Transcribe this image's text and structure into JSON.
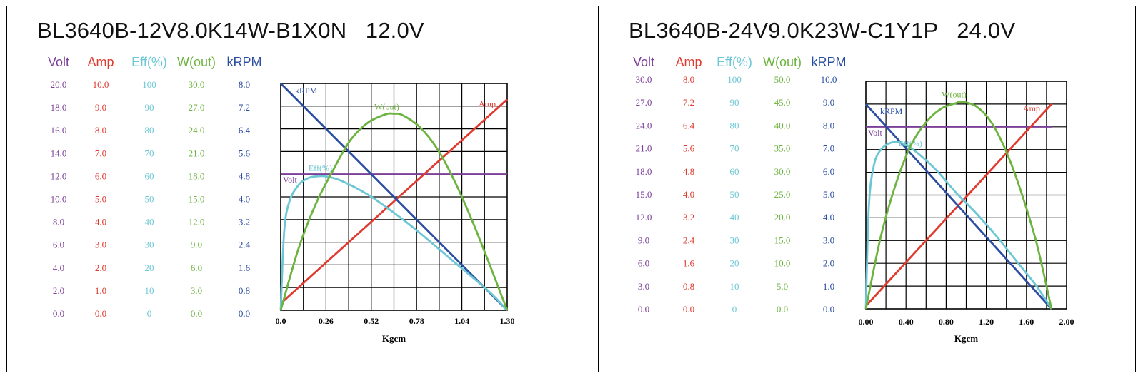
{
  "colors": {
    "volt": "#7b3f98",
    "amp": "#e03a2f",
    "eff": "#6cc7d4",
    "wout": "#6db33f",
    "krpm": "#2b4ea2",
    "grid": "#000000"
  },
  "chart_data": [
    {
      "type": "line",
      "title": "BL3640B-12V8.0K14W-B1X0N   12.0V",
      "xlabel": "Kgcm",
      "x_ticks": [
        "0.0",
        "0.26",
        "0.52",
        "0.78",
        "1.04",
        "1.30"
      ],
      "xlim": [
        0,
        1.3
      ],
      "axes": [
        {
          "key": "volt",
          "header": "Volt",
          "ticks": [
            "0.0",
            "2.0",
            "4.0",
            "6.0",
            "8.0",
            "10.0",
            "12.0",
            "14.0",
            "16.0",
            "18.0",
            "20.0"
          ],
          "range": [
            0,
            20
          ]
        },
        {
          "key": "amp",
          "header": "Amp",
          "ticks": [
            "0.0",
            "1.0",
            "2.0",
            "3.0",
            "4.0",
            "5.0",
            "6.0",
            "7.0",
            "8.0",
            "9.0",
            "10.0"
          ],
          "range": [
            0,
            10
          ]
        },
        {
          "key": "eff",
          "header": "Eff(%)",
          "ticks": [
            "0",
            "10",
            "20",
            "30",
            "40",
            "50",
            "60",
            "70",
            "80",
            "90",
            "100"
          ],
          "range": [
            0,
            100
          ]
        },
        {
          "key": "wout",
          "header": "W(out)",
          "ticks": [
            "0.0",
            "3.0",
            "6.0",
            "9.0",
            "12.0",
            "15.0",
            "18.0",
            "21.0",
            "24.0",
            "27.0",
            "30.0"
          ],
          "range": [
            0,
            30
          ]
        },
        {
          "key": "krpm",
          "header": "kRPM",
          "ticks": [
            "0.0",
            "0.8",
            "1.6",
            "2.4",
            "3.2",
            "4.0",
            "4.8",
            "5.6",
            "6.4",
            "7.2",
            "8.0"
          ],
          "range": [
            0,
            8
          ]
        }
      ],
      "series": [
        {
          "name": "Volt",
          "key": "volt",
          "label": "Volt",
          "x": [
            0,
            1.3
          ],
          "y": [
            12.0,
            12.0
          ]
        },
        {
          "name": "Amp",
          "key": "amp",
          "label": "Amp",
          "x": [
            0,
            1.3
          ],
          "y": [
            0.3,
            9.3
          ]
        },
        {
          "name": "kRPM",
          "key": "krpm",
          "label": "kRPM",
          "x": [
            0,
            1.3
          ],
          "y": [
            8.0,
            0
          ]
        },
        {
          "name": "Eff(%)",
          "key": "eff",
          "label": "Eff(%)",
          "x": [
            0,
            0.02,
            0.05,
            0.1,
            0.15,
            0.2,
            0.26,
            0.35,
            0.5,
            0.65,
            0.8,
            1.0,
            1.2,
            1.3
          ],
          "y": [
            0,
            35,
            48,
            55,
            58,
            59,
            59,
            57,
            51,
            43,
            34,
            21,
            8,
            0
          ]
        },
        {
          "name": "W(out)",
          "key": "wout",
          "label": "W(out)",
          "x": [
            0,
            0.1,
            0.2,
            0.3,
            0.4,
            0.5,
            0.6,
            0.65,
            0.7,
            0.8,
            0.9,
            1.0,
            1.1,
            1.2,
            1.3
          ],
          "y": [
            0,
            8.0,
            14.0,
            18.5,
            22.5,
            24.8,
            25.9,
            26.0,
            25.8,
            24.2,
            21.3,
            17.0,
            11.8,
            6.0,
            0
          ]
        }
      ]
    },
    {
      "type": "line",
      "title": "BL3640B-24V9.0K23W-C1Y1P   24.0V",
      "xlabel": "Kgcm",
      "x_ticks": [
        "0.00",
        "0.40",
        "0.80",
        "1.20",
        "1.60",
        "2.00"
      ],
      "xlim": [
        0,
        2.0
      ],
      "axes": [
        {
          "key": "volt",
          "header": "Volt",
          "ticks": [
            "0.0",
            "3.0",
            "6.0",
            "9.0",
            "12.0",
            "15.0",
            "18.0",
            "21.0",
            "24.0",
            "27.0",
            "30.0"
          ],
          "range": [
            0,
            30
          ]
        },
        {
          "key": "amp",
          "header": "Amp",
          "ticks": [
            "0.0",
            "0.8",
            "1.6",
            "2.4",
            "3.2",
            "4.0",
            "4.8",
            "5.6",
            "6.4",
            "7.2",
            "8.0"
          ],
          "range": [
            0,
            8
          ]
        },
        {
          "key": "eff",
          "header": "Eff(%)",
          "ticks": [
            "0",
            "10",
            "20",
            "30",
            "40",
            "50",
            "60",
            "70",
            "80",
            "90",
            "100"
          ],
          "range": [
            0,
            100
          ]
        },
        {
          "key": "wout",
          "header": "W(out)",
          "ticks": [
            "0.0",
            "5.0",
            "10.0",
            "15.0",
            "20.0",
            "25.0",
            "30.0",
            "35.0",
            "40.0",
            "45.0",
            "50.0"
          ],
          "range": [
            0,
            50
          ]
        },
        {
          "key": "krpm",
          "header": "kRPM",
          "ticks": [
            "0.0",
            "1.0",
            "2.0",
            "3.0",
            "4.0",
            "5.0",
            "6.0",
            "7.0",
            "8.0",
            "9.0",
            "10.0"
          ],
          "range": [
            0,
            10
          ]
        }
      ],
      "series": [
        {
          "name": "Volt",
          "key": "volt",
          "label": "Volt",
          "x": [
            0,
            1.85
          ],
          "y": [
            24.0,
            24.0
          ]
        },
        {
          "name": "Amp",
          "key": "amp",
          "label": "Amp",
          "x": [
            0,
            1.85
          ],
          "y": [
            0.1,
            7.2
          ]
        },
        {
          "name": "kRPM",
          "key": "krpm",
          "label": "kRPM",
          "x": [
            0,
            1.85
          ],
          "y": [
            9.0,
            0
          ]
        },
        {
          "name": "Eff(%)",
          "key": "eff",
          "label": "Eff(%)",
          "x": [
            0,
            0.03,
            0.08,
            0.15,
            0.25,
            0.35,
            0.5,
            0.7,
            0.9,
            1.1,
            1.3,
            1.5,
            1.7,
            1.85
          ],
          "y": [
            0,
            45,
            63,
            70,
            73,
            73,
            69,
            61,
            51,
            42,
            32,
            21,
            10,
            0
          ]
        },
        {
          "name": "W(out)",
          "key": "wout",
          "label": "W(out)",
          "x": [
            0,
            0.15,
            0.3,
            0.45,
            0.6,
            0.75,
            0.9,
            0.95,
            1.1,
            1.25,
            1.4,
            1.55,
            1.7,
            1.85
          ],
          "y": [
            0,
            16.0,
            27.5,
            36.0,
            41.0,
            44.0,
            45.2,
            45.5,
            44.5,
            41.0,
            34.5,
            25.5,
            14.5,
            0
          ]
        }
      ]
    }
  ]
}
